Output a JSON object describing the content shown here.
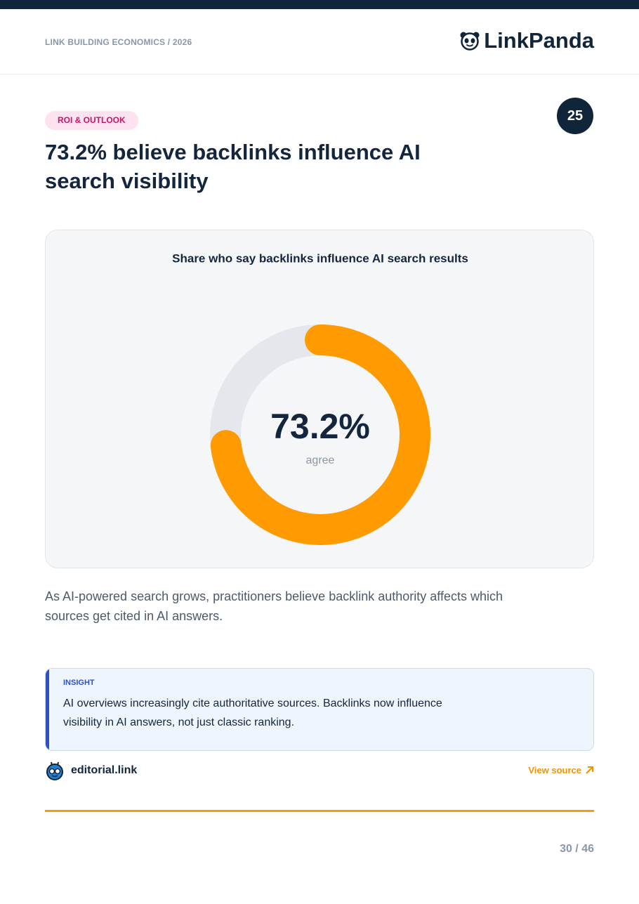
{
  "header": {
    "kicker": "LINK BUILDING ECONOMICS / 2026",
    "brand": "LinkPanda"
  },
  "tag": "ROI & OUTLOOK",
  "badge": "25",
  "title": "73.2% believe backlinks influence AI search visibility",
  "chart_data": {
    "type": "donut",
    "title": "Share who say backlinks influence AI search results",
    "categories": [
      "agree"
    ],
    "values": [
      73.2
    ],
    "value_labels": [
      "73.2%"
    ],
    "color": "#ff9a00",
    "track_color": "#e4e8ec",
    "ylim": [
      0,
      100
    ]
  },
  "body": "As AI-powered search grows, practitioners believe backlink authority affects which sources get cited in AI answers.",
  "insight": {
    "label": "INSIGHT",
    "text": "AI overviews increasingly cite authoritative sources. Backlinks now influence visibility in AI answers, not just classic ranking."
  },
  "source": {
    "name": "editorial.link",
    "link": "View source"
  },
  "page": "30 / 46"
}
